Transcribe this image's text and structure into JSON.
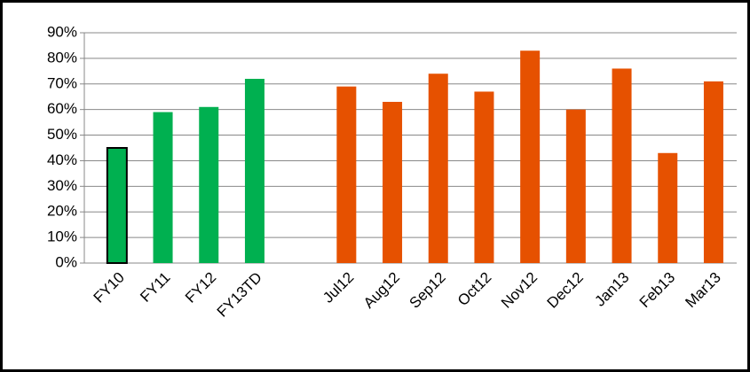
{
  "chart_data": {
    "type": "bar",
    "categories": [
      "FY10",
      "FY11",
      "FY12",
      "FY13TD",
      null,
      "Jul12",
      "Aug12",
      "Sep12",
      "Oct12",
      "Nov12",
      "Dec12",
      "Jan13",
      "Feb13",
      "Mar13"
    ],
    "values": [
      45,
      59,
      61,
      72,
      null,
      69,
      63,
      74,
      67,
      83,
      60,
      76,
      43,
      71
    ],
    "colors": [
      "#00b050",
      "#00b050",
      "#00b050",
      "#00b050",
      null,
      "#e65100",
      "#e65100",
      "#e65100",
      "#e65100",
      "#e65100",
      "#e65100",
      "#e65100",
      "#e65100",
      "#e65100"
    ],
    "edgecolors": [
      "#000000",
      null,
      null,
      null,
      null,
      null,
      null,
      null,
      null,
      null,
      null,
      null,
      null,
      null
    ],
    "ylim": [
      0,
      90
    ],
    "yticks": [
      {
        "value": 0,
        "label": "0%"
      },
      {
        "value": 10,
        "label": "10%"
      },
      {
        "value": 20,
        "label": "20%"
      },
      {
        "value": 30,
        "label": "30%"
      },
      {
        "value": 40,
        "label": "40%"
      },
      {
        "value": 50,
        "label": "50%"
      },
      {
        "value": 60,
        "label": "60%"
      },
      {
        "value": 70,
        "label": "70%"
      },
      {
        "value": 80,
        "label": "80%"
      },
      {
        "value": 90,
        "label": "90%"
      }
    ],
    "grid": true
  }
}
